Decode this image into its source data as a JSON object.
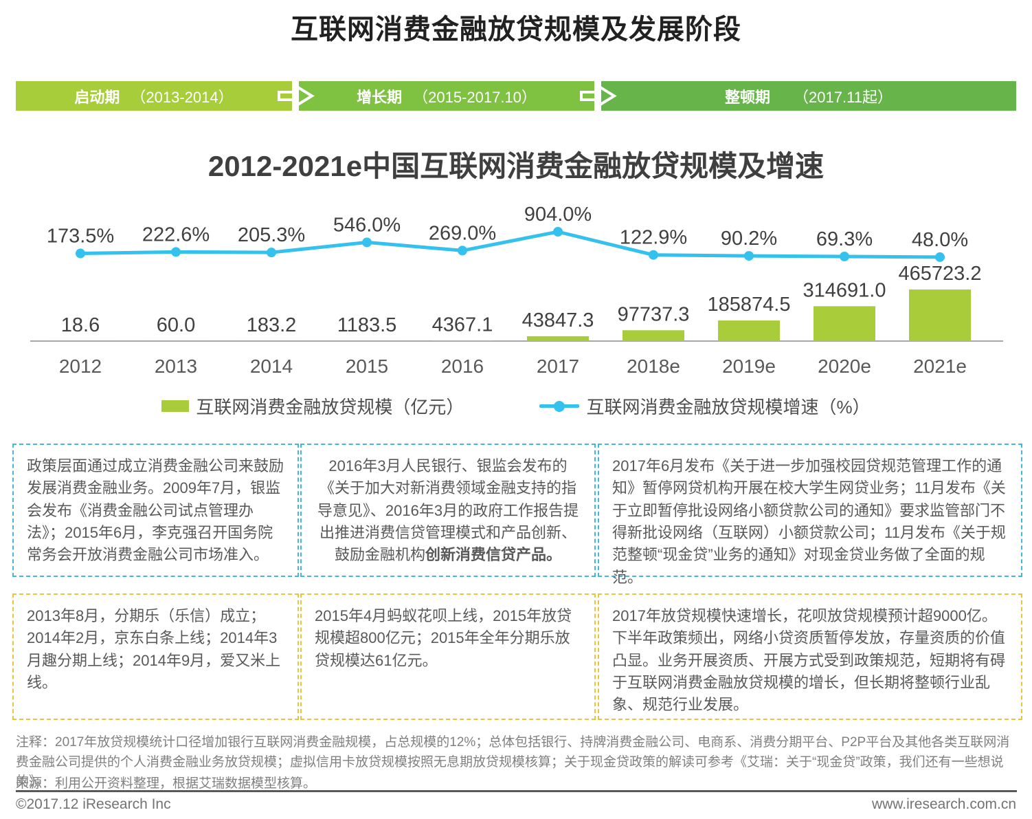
{
  "page_title": "互联网消费金融放贷规模及发展阶段",
  "stages": [
    {
      "name": "启动期",
      "period": "（2013-2014）",
      "color": "#a7cd3b"
    },
    {
      "name": "增长期",
      "period": "（2015-2017.10）",
      "color": "#7fc241"
    },
    {
      "name": "整顿期",
      "period": "（2017.11起）",
      "color": "#67b44a"
    }
  ],
  "chart_data": {
    "type": "bar+line",
    "title": "2012-2021e中国互联网消费金融放贷规模及增速",
    "categories": [
      "2012",
      "2013",
      "2014",
      "2015",
      "2016",
      "2017",
      "2018e",
      "2019e",
      "2020e",
      "2021e"
    ],
    "bars": {
      "name": "互联网消费金融放贷规模（亿元）",
      "type": "bar",
      "color": "#a8cc3a",
      "values": [
        18.6,
        60.0,
        183.2,
        1183.5,
        4367.1,
        43847.3,
        97737.3,
        185874.5,
        314691.0,
        465723.2
      ],
      "labels": [
        "18.6",
        "60.0",
        "183.2",
        "1183.5",
        "4367.1",
        "43847.3",
        "97737.3",
        "185874.5",
        "314691.0",
        "465723.2"
      ],
      "axis_max": 465723.2
    },
    "line": {
      "name": "互联网消费金融放贷规模增速（%）",
      "type": "line",
      "color": "#35c1ed",
      "values": [
        173.5,
        222.6,
        205.3,
        546.0,
        269.0,
        904.0,
        122.9,
        90.2,
        69.3,
        48.0
      ],
      "labels": [
        "173.5%",
        "222.6%",
        "205.3%",
        "546.0%",
        "269.0%",
        "904.0%",
        "122.9%",
        "90.2%",
        "69.3%",
        "48.0%"
      ],
      "axis_max": 904.0
    },
    "legend_position": "bottom",
    "grid": false
  },
  "info_boxes": [
    {
      "style": "blue",
      "text": "政策层面通过成立消费金融公司来鼓励发展消费金融业务。2009年7月，银监会发布《消费金融公司试点管理办法》；2015年6月，李克强召开国务院常务会开放消费金融公司市场准入。",
      "bold_text": ""
    },
    {
      "style": "blue",
      "text": "2016年3月人民银行、银监会发布的《关于加大对新消费领域金融支持的指导意见》、2016年3月的政府工作报告提出推进消费信贷管理模式和产品创新、鼓励金融机构",
      "bold_text": "创新消费信贷产品。"
    },
    {
      "style": "blue",
      "text": "2017年6月发布《关于进一步加强校园贷规范管理工作的通知》暂停网贷机构开展在校大学生网贷业务；11月发布《关于立即暂停批设网络小额贷款公司的通知》要求监管部门不得新批设网络（互联网）小额贷款公司；11月发布《关于规范整顿“现金贷”业务的通知》对现金贷业务做了全面的规范。",
      "bold_text": ""
    },
    {
      "style": "yellow",
      "text": "2013年8月，分期乐（乐信）成立；2014年2月，京东白条上线；2014年3月趣分期上线；2014年9月，爱又米上线。",
      "bold_text": ""
    },
    {
      "style": "yellow",
      "text": "2015年4月蚂蚁花呗上线，2015年放贷规模超800亿元；2015年全年分期乐放贷规模达61亿元。",
      "bold_text": ""
    },
    {
      "style": "yellow",
      "text": "2017年放贷规模快速增长，花呗放贷规模预计超9000亿。下半年政策频出，网络小贷资质暂停发放，存量资质的价值凸显。业务开展资质、开展方式受到政策规范，短期将有碍于互联网消费金融放贷规模的增长，但长期将整顿行业乱象、规范行业发展。",
      "bold_text": ""
    }
  ],
  "notes": {
    "line1": "注释：2017年放贷规模统计口径增加银行互联网消费金融规模，占总规模的12%；总体包括银行、持牌消费金融公司、电商系、消费分期平台、P2P平台及其他各类互联网消费金融公司提供的个人消费金融业务放贷规模；虚拟信用卡放贷规模按照无息期放贷规模核算；关于现金贷政策的解读可参考《艾瑞：关于“现金贷”政策，我们还有一些想说的》。",
    "source": "来源：利用公开资料整理，根据艾瑞数据模型核算。"
  },
  "footer": {
    "left": "©2017.12 iResearch Inc",
    "right": "www.iresearch.com.cn"
  }
}
